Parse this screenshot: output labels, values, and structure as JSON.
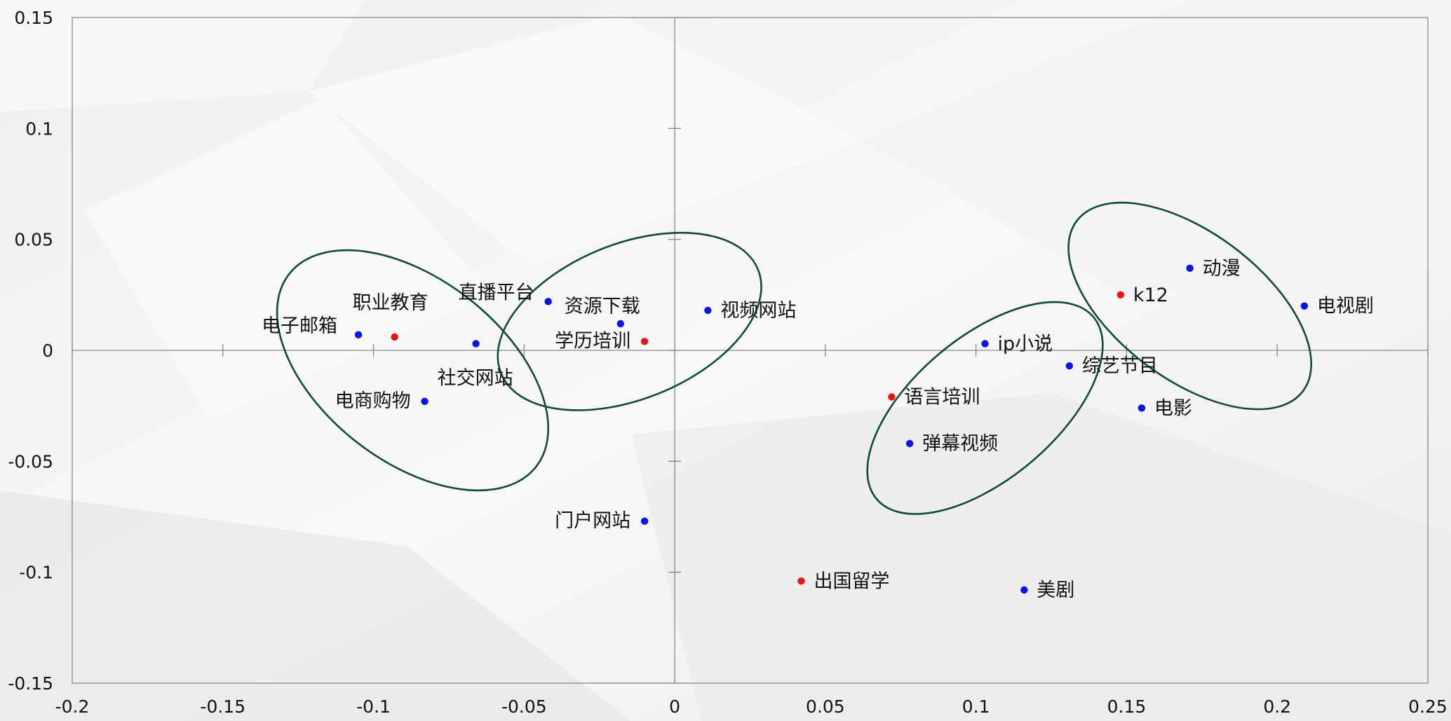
{
  "chart_data": {
    "type": "scatter",
    "title": "",
    "xlabel": "",
    "ylabel": "",
    "xlim": [
      -0.2,
      0.25
    ],
    "ylim": [
      -0.15,
      0.15
    ],
    "grid": false,
    "x_ticks": [
      -0.2,
      -0.15,
      -0.1,
      -0.05,
      0,
      0.05,
      0.1,
      0.15,
      0.2,
      0.25
    ],
    "x_tick_labels": [
      "-0.2",
      "-0.15",
      "-0.1",
      "-0.05",
      "0",
      "0.05",
      "0.1",
      "0.15",
      "0.2",
      "0.25"
    ],
    "y_ticks": [
      0.15,
      0.1,
      0.05,
      0,
      -0.05,
      -0.1,
      -0.15
    ],
    "y_tick_labels": [
      "0.15",
      "0.1",
      "0.05",
      "0",
      "-0.05",
      "-0.1",
      "-0.15"
    ],
    "colors": {
      "blue": "#0a14e6",
      "red": "#e61414",
      "ellipse": "#0f4a3c",
      "axis": "#888888"
    },
    "points": [
      {
        "label": "电子邮箱",
        "x": -0.105,
        "y": 0.007,
        "color": "blue"
      },
      {
        "label": "职业教育",
        "x": -0.093,
        "y": 0.006,
        "color": "red"
      },
      {
        "label": "社交网站",
        "x": -0.066,
        "y": 0.003,
        "color": "blue"
      },
      {
        "label": "电商购物",
        "x": -0.083,
        "y": -0.023,
        "color": "blue"
      },
      {
        "label": "直播平台",
        "x": -0.042,
        "y": 0.022,
        "color": "blue"
      },
      {
        "label": "资源下载",
        "x": -0.018,
        "y": 0.012,
        "color": "blue"
      },
      {
        "label": "学历培训",
        "x": -0.01,
        "y": 0.004,
        "color": "red"
      },
      {
        "label": "视频网站",
        "x": 0.011,
        "y": 0.018,
        "color": "blue"
      },
      {
        "label": "门户网站",
        "x": -0.01,
        "y": -0.077,
        "color": "blue"
      },
      {
        "label": "出国留学",
        "x": 0.042,
        "y": -0.104,
        "color": "red"
      },
      {
        "label": "语言培训",
        "x": 0.072,
        "y": -0.021,
        "color": "red"
      },
      {
        "label": "弹幕视频",
        "x": 0.078,
        "y": -0.042,
        "color": "blue"
      },
      {
        "label": "ip小说",
        "x": 0.103,
        "y": 0.003,
        "color": "blue"
      },
      {
        "label": "综艺节目",
        "x": 0.131,
        "y": -0.007,
        "color": "blue"
      },
      {
        "label": "k12",
        "x": 0.148,
        "y": 0.025,
        "color": "red"
      },
      {
        "label": "动漫",
        "x": 0.171,
        "y": 0.037,
        "color": "blue"
      },
      {
        "label": "电视剧",
        "x": 0.209,
        "y": 0.02,
        "color": "blue"
      },
      {
        "label": "电影",
        "x": 0.155,
        "y": -0.026,
        "color": "blue"
      },
      {
        "label": "美剧",
        "x": 0.116,
        "y": -0.108,
        "color": "blue"
      }
    ],
    "ellipses": [
      {
        "cx": -0.087,
        "cy": -0.009,
        "rx": 0.052,
        "ry": 0.041,
        "rotation_deg": 38
      },
      {
        "cx": -0.015,
        "cy": 0.013,
        "rx": 0.046,
        "ry": 0.035,
        "rotation_deg": -22
      },
      {
        "cx": 0.103,
        "cy": -0.026,
        "rx": 0.047,
        "ry": 0.032,
        "rotation_deg": -40
      },
      {
        "cx": 0.171,
        "cy": 0.02,
        "rx": 0.047,
        "ry": 0.033,
        "rotation_deg": 37
      }
    ]
  }
}
